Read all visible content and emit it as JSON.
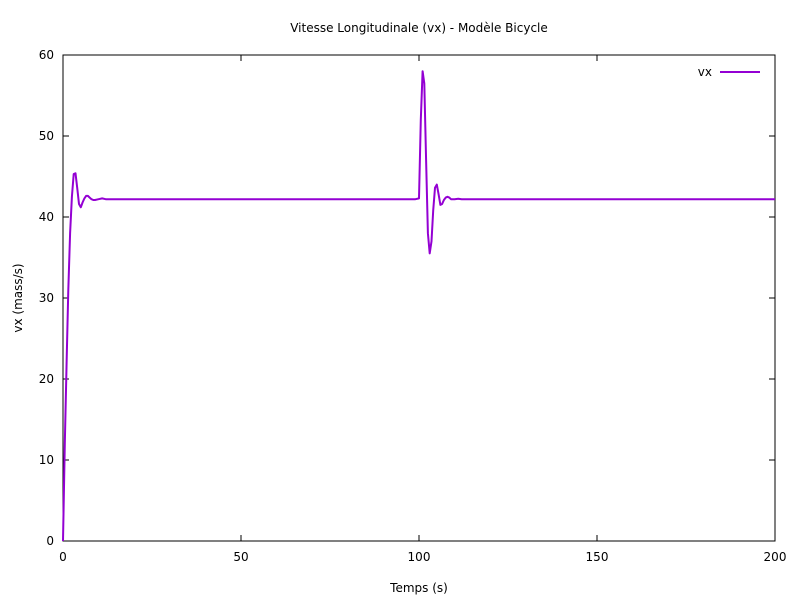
{
  "chart_data": {
    "type": "line",
    "title": "Vitesse Longitudinale (vx) - Modèle Bicycle",
    "xlabel": "Temps (s)",
    "ylabel": "vx (mass/s)",
    "xlim": [
      0,
      200
    ],
    "ylim": [
      0,
      60
    ],
    "xticks": [
      0,
      50,
      100,
      150,
      200
    ],
    "yticks": [
      0,
      10,
      20,
      30,
      40,
      50,
      60
    ],
    "grid": false,
    "legend_position": "top-right",
    "series": [
      {
        "name": "vx",
        "color": "#9400d3",
        "x": [
          0,
          0.5,
          1,
          1.5,
          2,
          2.5,
          3,
          3.5,
          4,
          4.5,
          5,
          5.5,
          6,
          6.5,
          7,
          7.5,
          8,
          8.5,
          9,
          10,
          11,
          12,
          15,
          20,
          30,
          50,
          80,
          99,
          100,
          100.5,
          101,
          101.5,
          102,
          102.5,
          103,
          103.5,
          104,
          104.5,
          105,
          105.5,
          106,
          106.5,
          107,
          107.5,
          108,
          108.5,
          109,
          110,
          111,
          112,
          115,
          150,
          200
        ],
        "y": [
          0,
          12,
          22,
          31,
          38,
          42.5,
          45.3,
          45.4,
          43.6,
          41.6,
          41.2,
          41.8,
          42.3,
          42.6,
          42.6,
          42.4,
          42.2,
          42.1,
          42.1,
          42.2,
          42.3,
          42.2,
          42.2,
          42.2,
          42.2,
          42.2,
          42.2,
          42.2,
          42.3,
          52,
          58,
          56.5,
          47,
          38,
          35.5,
          37,
          40.8,
          43.6,
          44,
          42.8,
          41.5,
          41.6,
          42.1,
          42.4,
          42.5,
          42.4,
          42.2,
          42.2,
          42.25,
          42.2,
          42.2,
          42.2,
          42.2
        ]
      }
    ]
  }
}
